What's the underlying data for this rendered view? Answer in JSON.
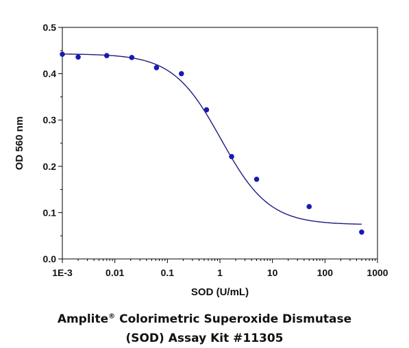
{
  "caption": {
    "line1_prefix": "Amplite",
    "line1_reg": "®",
    "line1_suffix": " Colorimetric Superoxide Dismutase",
    "line2": "(SOD) Assay Kit #11305"
  },
  "chart_data": {
    "type": "scatter",
    "xlabel": "SOD (U/mL)",
    "ylabel": "OD 560 nm",
    "xscale": "log",
    "xlim": [
      0.001,
      1000
    ],
    "ylim": [
      0.0,
      0.5
    ],
    "xticks": [
      0.001,
      0.01,
      0.1,
      1,
      10,
      100,
      1000
    ],
    "xtick_labels": [
      "1E-3",
      "0.01",
      "0.1",
      "1",
      "10",
      "100",
      "1000"
    ],
    "yticks": [
      0.0,
      0.1,
      0.2,
      0.3,
      0.4,
      0.5
    ],
    "ytick_labels": [
      "0.0",
      "0.1",
      "0.2",
      "0.3",
      "0.4",
      "0.5"
    ],
    "grid": false,
    "series": [
      {
        "kind": "points",
        "color": "#1a1ab0",
        "x": [
          0.001,
          0.002,
          0.007,
          0.021,
          0.062,
          0.185,
          0.556,
          1.67,
          5.0,
          50,
          500
        ],
        "y": [
          0.442,
          0.436,
          0.439,
          0.435,
          0.413,
          0.4,
          0.322,
          0.221,
          0.172,
          0.113,
          0.058
        ]
      },
      {
        "kind": "fit-curve",
        "color": "#1a1a80",
        "model": "4PL",
        "top": 0.443,
        "bottom": 0.074,
        "ec50": 1.05,
        "hill": 0.95
      }
    ]
  }
}
